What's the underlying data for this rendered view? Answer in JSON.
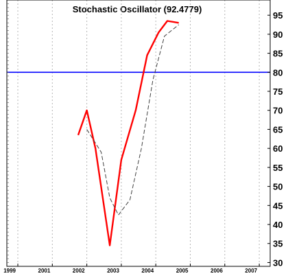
{
  "chart_data": {
    "type": "line",
    "title": "Stochastic Oscillator (92.4779)",
    "xlabel": "",
    "ylabel": "",
    "x_ticks": [
      "1999",
      "2001",
      "2002",
      "2003",
      "2004",
      "2005",
      "2006",
      "2007"
    ],
    "y_ticks": [
      30,
      35,
      40,
      45,
      50,
      55,
      60,
      65,
      70,
      75,
      80,
      85,
      90,
      95
    ],
    "ylim": [
      29,
      99
    ],
    "grid": true,
    "legend": "none",
    "reference_line": {
      "value": 80,
      "color": "#0000ff"
    },
    "colors": {
      "main": "#ff0000",
      "signal": "#404040",
      "reference": "#0000ff",
      "grid": "#b4b4b4",
      "axis": "#000000"
    },
    "series": [
      {
        "style": "solid",
        "x": [
          "2001-10",
          "2002-01",
          "2002-04",
          "2002-09",
          "2003-01",
          "2003-06",
          "2003-10",
          "2004-02",
          "2004-05",
          "2004-09"
        ],
        "values": [
          63.5,
          70,
          60,
          34.5,
          57,
          70,
          84.5,
          90.5,
          93.5,
          93
        ]
      },
      {
        "style": "dashed",
        "x": [
          "2002-01",
          "2002-06",
          "2002-09",
          "2002-12",
          "2003-04",
          "2003-08",
          "2003-12",
          "2004-04",
          "2004-09"
        ],
        "values": [
          65,
          59,
          47,
          42.5,
          46.5,
          60,
          78,
          89.5,
          92.5
        ]
      }
    ]
  }
}
